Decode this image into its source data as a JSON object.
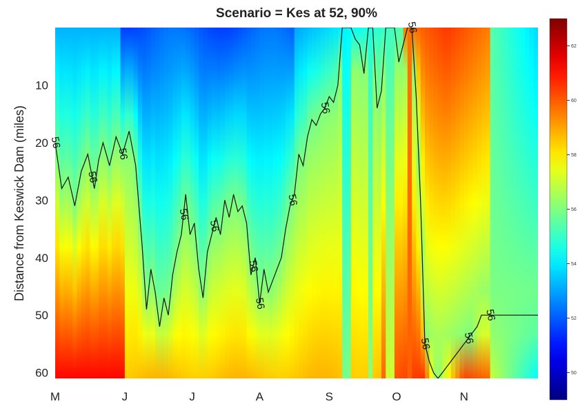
{
  "chart_data": {
    "type": "heatmap",
    "title": "Scenario = Kes at 52, 90%",
    "xlabel": "",
    "ylabel": "Distance from Keswick Dam (miles)",
    "x_ticks": [
      "M",
      "J",
      "J",
      "A",
      "S",
      "O",
      "N"
    ],
    "y_ticks": [
      10,
      20,
      30,
      40,
      50,
      60
    ],
    "ylim": [
      0,
      61
    ],
    "y_reversed": true,
    "colormap": "jet",
    "colorbar": {
      "range": [
        49,
        63
      ],
      "ticks": [
        50,
        52,
        54,
        56,
        58,
        60,
        62
      ]
    },
    "contour_level": 56,
    "contour_label": "56",
    "contour_x": [
      0,
      3,
      6,
      9,
      12,
      15,
      18,
      20,
      22,
      25,
      28,
      31,
      34,
      37,
      40,
      42,
      44,
      46,
      48,
      50,
      52,
      54,
      56,
      58,
      60,
      62,
      64,
      66,
      68,
      70,
      72,
      74,
      76,
      78,
      80,
      82,
      84,
      86,
      88,
      90,
      92,
      94,
      96,
      98,
      100,
      102,
      104,
      106,
      108,
      110,
      112,
      114,
      116,
      118,
      120,
      122,
      124,
      126,
      128,
      130,
      132,
      134,
      136,
      138,
      140,
      142,
      144,
      146,
      148,
      150,
      152,
      154,
      156,
      158,
      160,
      162,
      164,
      166,
      168,
      170,
      172,
      174,
      176,
      178,
      180,
      182,
      184,
      186,
      188,
      190,
      192,
      194,
      195,
      196,
      198,
      200,
      202,
      204,
      206,
      208,
      210,
      212,
      214,
      216,
      218,
      220,
      221,
      222
    ],
    "contour_depth": [
      20,
      28,
      26,
      31,
      25,
      22,
      28,
      23,
      20,
      24,
      19,
      22,
      18,
      24,
      38,
      49,
      42,
      46,
      52,
      47,
      50,
      43,
      39,
      36,
      29,
      36,
      34,
      42,
      47,
      39,
      36,
      33,
      36,
      30,
      33,
      29,
      32,
      31,
      34,
      43,
      40,
      48,
      42,
      46,
      44,
      42,
      40,
      35,
      31,
      29,
      22,
      24,
      19,
      16,
      17,
      15,
      14,
      12,
      13,
      10,
      0,
      0,
      0,
      2,
      3,
      8,
      0,
      0,
      14,
      11,
      0,
      0,
      0,
      6,
      3,
      0,
      0,
      12,
      30,
      55,
      58,
      60,
      61,
      60,
      59,
      58,
      57,
      56,
      55,
      54,
      53,
      52,
      51,
      50,
      50,
      50,
      50,
      50,
      50,
      50,
      50,
      50,
      50,
      50,
      50,
      50,
      50,
      50
    ],
    "labels_positions_note": ""
  }
}
